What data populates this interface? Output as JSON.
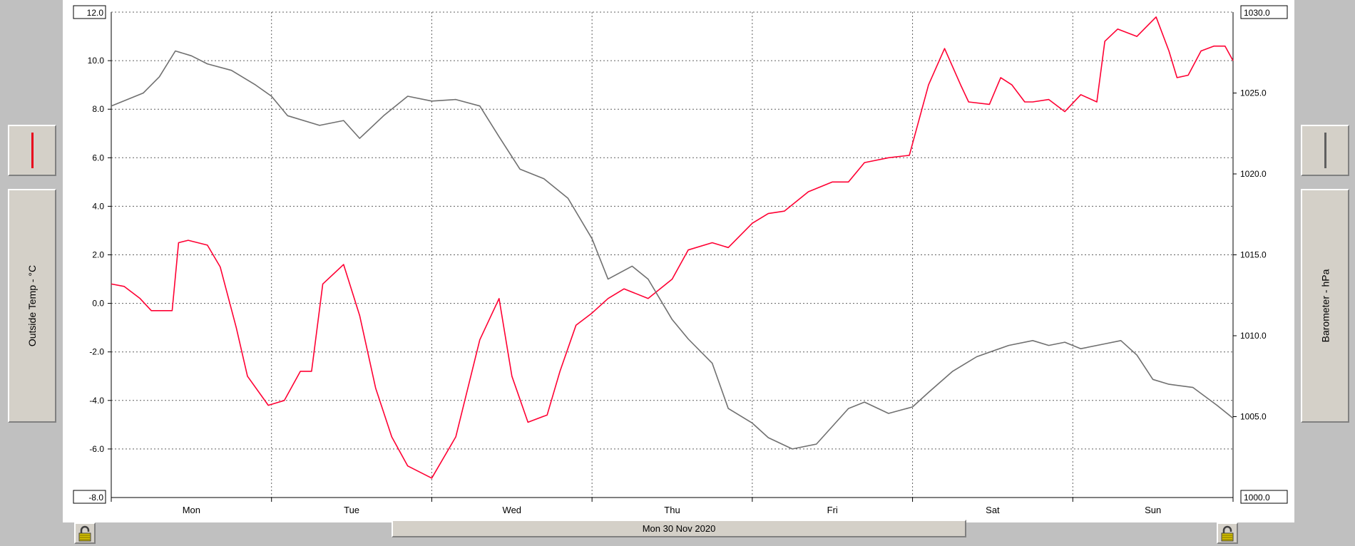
{
  "chart_data": {
    "type": "line",
    "x_categories": [
      "Mon",
      "Tue",
      "Wed",
      "Thu",
      "Fri",
      "Sat",
      "Sun"
    ],
    "x_range_days": [
      0,
      7
    ],
    "grid": true,
    "left_axis": {
      "title": "Outside Temp - °C",
      "ylim": [
        -8.0,
        12.0
      ],
      "top_label": "12.0",
      "bottom_label": "-8.0",
      "ticks": [
        "10.0",
        "8.0",
        "6.0",
        "4.0",
        "2.0",
        "0.0",
        "-2.0",
        "-4.0",
        "-6.0"
      ],
      "tick_values": [
        10,
        8,
        6,
        4,
        2,
        0,
        -2,
        -4,
        -6
      ]
    },
    "right_axis": {
      "title": "Barometer - hPa",
      "ylim": [
        1000.0,
        1030.0
      ],
      "top_label": "1030.0",
      "bottom_label": "1000.0",
      "ticks": [
        "1025.0",
        "1020.0",
        "1015.0",
        "1010.0",
        "1005.0"
      ],
      "tick_values": [
        1025,
        1020,
        1015,
        1010,
        1005
      ]
    },
    "series": [
      {
        "name": "Outside Temp - °C",
        "axis": "left",
        "color": "#ff0033",
        "x": [
          0,
          0.08,
          0.18,
          0.25,
          0.38,
          0.42,
          0.48,
          0.6,
          0.68,
          0.78,
          0.85,
          0.98,
          1.08,
          1.18,
          1.25,
          1.32,
          1.45,
          1.55,
          1.65,
          1.75,
          1.85,
          2.0,
          2.15,
          2.3,
          2.42,
          2.5,
          2.6,
          2.72,
          2.8,
          2.9,
          3.0,
          3.1,
          3.2,
          3.35,
          3.5,
          3.6,
          3.75,
          3.85,
          4.0,
          4.1,
          4.2,
          4.35,
          4.5,
          4.6,
          4.7,
          4.85,
          4.98,
          5.1,
          5.2,
          5.3,
          5.35,
          5.48,
          5.55,
          5.62,
          5.7,
          5.75,
          5.85,
          5.95,
          6.05,
          6.15,
          6.2,
          6.28,
          6.4,
          6.52,
          6.6,
          6.65,
          6.72,
          6.8,
          6.88,
          6.95,
          7.0
        ],
        "values": [
          0.8,
          0.7,
          0.2,
          -0.3,
          -0.3,
          2.5,
          2.6,
          2.4,
          1.5,
          -1.0,
          -3.0,
          -4.2,
          -4.0,
          -2.8,
          -2.8,
          0.8,
          1.6,
          -0.5,
          -3.5,
          -5.5,
          -6.7,
          -7.2,
          -5.5,
          -1.5,
          0.2,
          -3.0,
          -4.9,
          -4.6,
          -2.8,
          -0.9,
          -0.4,
          0.2,
          0.6,
          0.2,
          1.0,
          2.2,
          2.5,
          2.3,
          3.3,
          3.7,
          3.8,
          4.6,
          5.0,
          5.0,
          5.8,
          6.0,
          6.1,
          9.0,
          10.5,
          9.0,
          8.3,
          8.2,
          9.3,
          9.0,
          8.3,
          8.3,
          8.4,
          7.9,
          8.6,
          8.3,
          10.8,
          11.3,
          11.0,
          11.8,
          10.4,
          9.3,
          9.4,
          10.4,
          10.6,
          10.6,
          10.0
        ]
      },
      {
        "name": "Barometer - hPa",
        "axis": "right",
        "color": "#707070",
        "x": [
          0,
          0.1,
          0.2,
          0.3,
          0.4,
          0.5,
          0.6,
          0.75,
          0.9,
          1.0,
          1.1,
          1.3,
          1.45,
          1.55,
          1.7,
          1.85,
          2.0,
          2.15,
          2.3,
          2.42,
          2.55,
          2.7,
          2.85,
          3.0,
          3.1,
          3.25,
          3.35,
          3.5,
          3.6,
          3.75,
          3.85,
          4.0,
          4.1,
          4.25,
          4.4,
          4.5,
          4.6,
          4.7,
          4.85,
          5.0,
          5.1,
          5.25,
          5.4,
          5.6,
          5.75,
          5.85,
          5.95,
          6.05,
          6.2,
          6.3,
          6.4,
          6.5,
          6.6,
          6.75,
          6.9,
          7.0
        ],
        "values": [
          1024.2,
          1024.6,
          1025.0,
          1026.0,
          1027.6,
          1027.3,
          1026.8,
          1026.4,
          1025.5,
          1024.8,
          1023.6,
          1023.0,
          1023.3,
          1022.2,
          1023.6,
          1024.8,
          1024.5,
          1024.6,
          1024.2,
          1022.3,
          1020.3,
          1019.7,
          1018.5,
          1016.0,
          1013.5,
          1014.3,
          1013.5,
          1011.0,
          1009.8,
          1008.3,
          1005.5,
          1004.6,
          1003.7,
          1003.0,
          1003.3,
          1004.4,
          1005.5,
          1005.9,
          1005.2,
          1005.6,
          1006.5,
          1007.8,
          1008.7,
          1009.4,
          1009.7,
          1009.4,
          1009.6,
          1009.2,
          1009.5,
          1009.7,
          1008.8,
          1007.3,
          1007.0,
          1006.8,
          1005.7,
          1004.9
        ]
      }
    ]
  },
  "footer": {
    "date_label": "Mon 30 Nov 2020"
  },
  "buttons": {
    "left_legend_color": "#e8001c",
    "right_legend_color": "#606060"
  }
}
